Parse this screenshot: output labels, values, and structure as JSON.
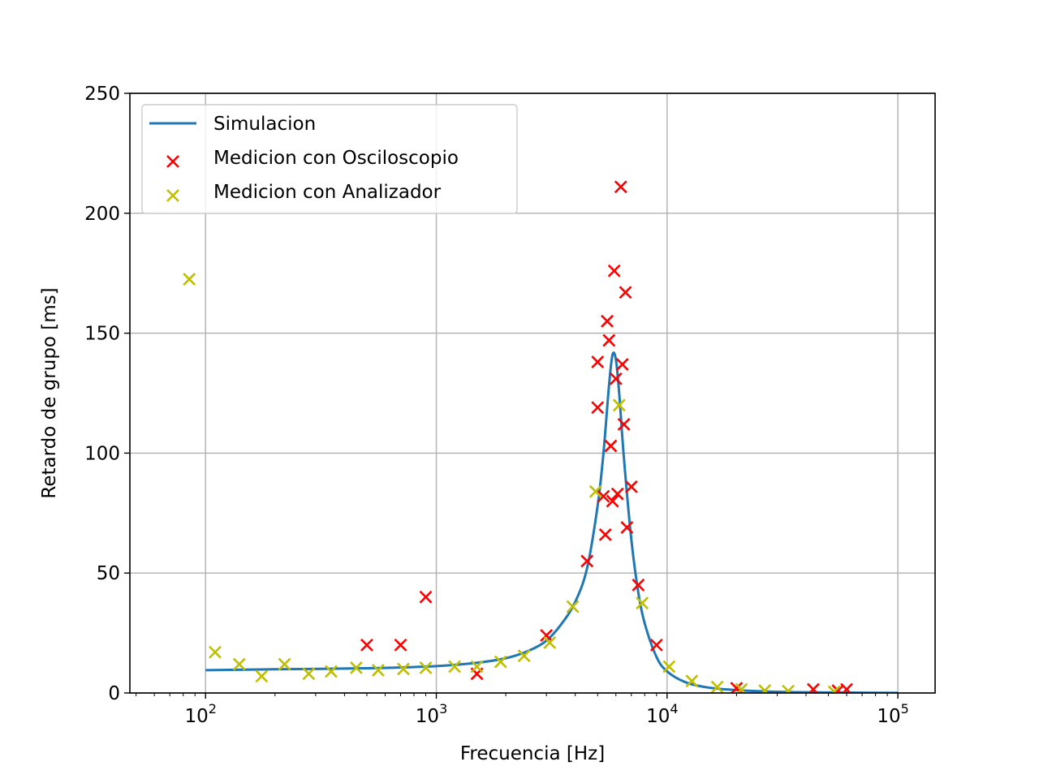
{
  "chart_data": {
    "type": "scatter",
    "xlabel": "Frecuencia [Hz]",
    "ylabel": "Retardo de grupo [ms]",
    "x_scale": "log",
    "xlim": [
      47,
      145000
    ],
    "ylim": [
      0,
      250
    ],
    "grid": true,
    "legend_position": "upper-left",
    "x_ticks": [
      {
        "value": 100,
        "base": "10",
        "exp": "2"
      },
      {
        "value": 1000,
        "base": "10",
        "exp": "3"
      },
      {
        "value": 10000,
        "base": "10",
        "exp": "4"
      },
      {
        "value": 100000,
        "base": "10",
        "exp": "5"
      }
    ],
    "y_ticks": [
      0,
      50,
      100,
      150,
      200,
      250
    ],
    "series": [
      {
        "name": "Simulacion",
        "kind": "line",
        "color": "#1f77b4",
        "x": [
          100,
          200,
          500,
          1000,
          1500,
          2000,
          2500,
          3000,
          3500,
          4000,
          4500,
          5000,
          5300,
          5600,
          5800,
          6000,
          6200,
          6500,
          7000,
          7500,
          8000,
          9000,
          10000,
          12000,
          15000,
          20000,
          30000,
          50000,
          100000
        ],
        "y": [
          9.5,
          9.9,
          10.3,
          11.2,
          12.6,
          14.5,
          17.5,
          21.8,
          29,
          38,
          52,
          78,
          100,
          128,
          141,
          139,
          125,
          98,
          64,
          42,
          29,
          15,
          9,
          4.5,
          2.3,
          1.2,
          0.5,
          0.2,
          0.05
        ]
      },
      {
        "name": "Medicion con Osciloscopio",
        "kind": "scatter",
        "marker": "x",
        "color": "#ff0000",
        "x": [
          500,
          700,
          900,
          1500,
          3000,
          4500,
          5000,
          5000,
          5300,
          5400,
          5500,
          5600,
          5700,
          5800,
          5900,
          6000,
          6100,
          6300,
          6400,
          6500,
          6600,
          6700,
          7000,
          7500,
          9000,
          20000,
          43000,
          55000,
          60000
        ],
        "y": [
          20,
          20,
          40,
          8,
          24,
          55,
          138,
          119,
          82,
          66,
          155,
          147,
          103,
          80,
          176,
          131,
          83,
          211,
          137,
          112,
          167,
          69,
          86,
          45,
          20,
          2,
          1.5,
          1,
          1.5
        ]
      },
      {
        "name": "Medicion con Analizador",
        "kind": "scatter",
        "marker": "x",
        "color": "#bfbf00",
        "x": [
          85,
          110,
          140,
          175,
          220,
          280,
          350,
          450,
          560,
          720,
          900,
          1200,
          1500,
          1900,
          2400,
          3100,
          3900,
          4900,
          6200,
          7800,
          10200,
          12800,
          16500,
          21000,
          26500,
          33500,
          53000
        ],
        "y": [
          172.5,
          17,
          12,
          7,
          12,
          8,
          9,
          10.5,
          9.5,
          10,
          10.5,
          11,
          11,
          13,
          15.5,
          21,
          36,
          84,
          120,
          37.5,
          11,
          5,
          2.5,
          1.5,
          1,
          0.8,
          0.5
        ]
      }
    ]
  }
}
